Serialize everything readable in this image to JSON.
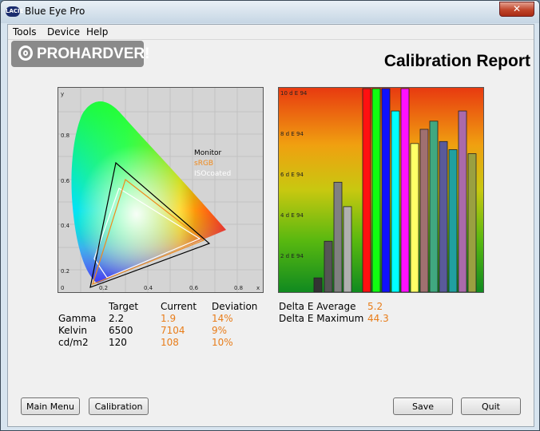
{
  "window": {
    "title": "Blue Eye Pro",
    "close_glyph": "✕",
    "icon_text": "LACIE"
  },
  "menu": [
    "Tools",
    "Device",
    "Help"
  ],
  "logo": {
    "text": "PROHARDVER!"
  },
  "report": {
    "heading": "Calibration Report"
  },
  "colors": {
    "accent_value": "#e87d1a",
    "bg": "#f0f0f0"
  },
  "gamut": {
    "y_axis_label": "y",
    "x_axis_label": "x",
    "legend": [
      {
        "label": "Monitor",
        "color": "#000000"
      },
      {
        "label": "sRGB",
        "color": "#f08a1c"
      },
      {
        "label": "ISOcoated",
        "color": "#ffffff"
      }
    ],
    "x_ticks": [
      "0",
      "0.2",
      "0.4",
      "0.6",
      "0.8"
    ],
    "y_ticks": [
      "0.8",
      "0.6",
      "0.4",
      "0.2"
    ]
  },
  "chart_data": {
    "type": "bar",
    "ylim": [
      0,
      10
    ],
    "ytick_labels": [
      "10 d E 94",
      "8 d E 94",
      "6 d E 94",
      "4 d E 94",
      "2 d E 94"
    ],
    "values": [
      0.7,
      2.5,
      5.4,
      4.2,
      10,
      10,
      10,
      8.9,
      10,
      7.3,
      8.0,
      8.4,
      7.4,
      7.0,
      8.9,
      6.8
    ],
    "colors": [
      "#333333",
      "#555555",
      "#808080",
      "#b0b0b0",
      "#ff1010",
      "#10ff10",
      "#1010ff",
      "#00ffff",
      "#ff10ff",
      "#ffff66",
      "#a07070",
      "#40a880",
      "#5a5a9a",
      "#20a0a0",
      "#aa6aaa",
      "#9aa040"
    ]
  },
  "stats": {
    "headers": {
      "target": "Target",
      "current": "Current",
      "deviation": "Deviation"
    },
    "rows": [
      {
        "label": "Gamma",
        "target": "2.2",
        "current": "1.9",
        "deviation": "14%"
      },
      {
        "label": "Kelvin",
        "target": "6500",
        "current": "7104",
        "deviation": "9%"
      },
      {
        "label": "cd/m2",
        "target": "120",
        "current": "108",
        "deviation": "10%"
      }
    ]
  },
  "delta": {
    "average_label": "Delta E Average",
    "average_value": "5.2",
    "maximum_label": "Delta E Maximum",
    "maximum_value": "44.3"
  },
  "buttons": {
    "main_menu": "Main Menu",
    "calibration": "Calibration",
    "save": "Save",
    "quit": "Quit"
  }
}
